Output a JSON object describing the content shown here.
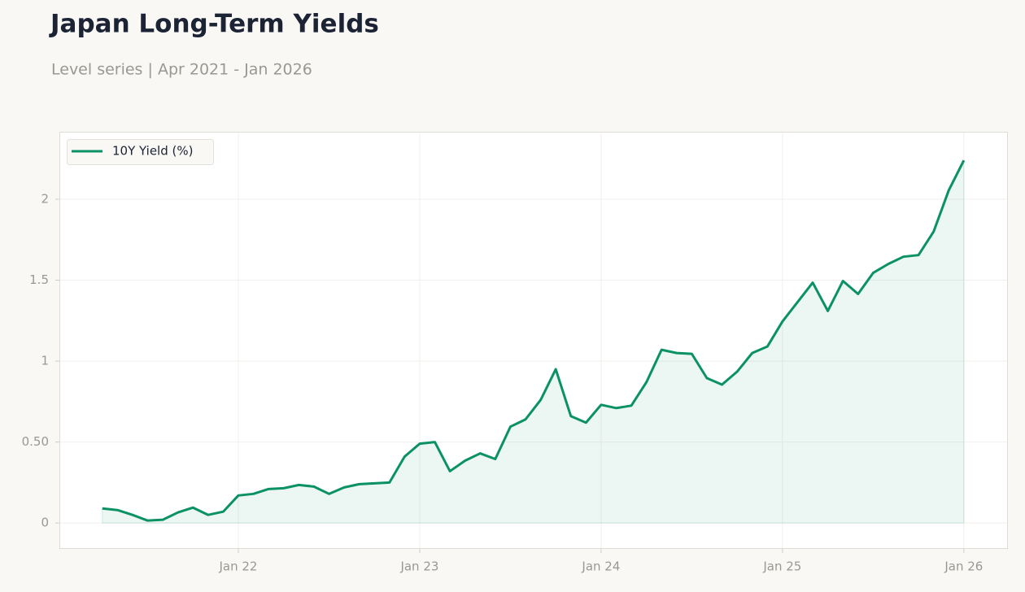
{
  "chart_data": {
    "type": "line",
    "title": "Japan Long-Term Yields",
    "subtitle": "Level series | Apr 2021 - Jan 2026",
    "x": [
      "2021-04",
      "2021-05",
      "2021-06",
      "2021-07",
      "2021-08",
      "2021-09",
      "2021-10",
      "2021-11",
      "2021-12",
      "2022-01",
      "2022-02",
      "2022-03",
      "2022-04",
      "2022-05",
      "2022-06",
      "2022-07",
      "2022-08",
      "2022-09",
      "2022-10",
      "2022-11",
      "2022-12",
      "2023-01",
      "2023-02",
      "2023-03",
      "2023-04",
      "2023-05",
      "2023-06",
      "2023-07",
      "2023-08",
      "2023-09",
      "2023-10",
      "2023-11",
      "2023-12",
      "2024-01",
      "2024-02",
      "2024-03",
      "2024-04",
      "2024-05",
      "2024-06",
      "2024-07",
      "2024-08",
      "2024-09",
      "2024-10",
      "2024-11",
      "2024-12",
      "2025-01",
      "2025-02",
      "2025-03",
      "2025-04",
      "2025-05",
      "2025-06",
      "2025-07",
      "2025-08",
      "2025-09",
      "2025-10",
      "2025-11",
      "2025-12",
      "2026-01"
    ],
    "series": [
      {
        "name": "10Y Yield (%)",
        "color": "#0a9165",
        "values": [
          0.09,
          0.08,
          0.05,
          0.015,
          0.02,
          0.065,
          0.095,
          0.05,
          0.07,
          0.17,
          0.18,
          0.21,
          0.215,
          0.235,
          0.225,
          0.18,
          0.22,
          0.24,
          0.245,
          0.25,
          0.41,
          0.49,
          0.5,
          0.32,
          0.385,
          0.43,
          0.395,
          0.595,
          0.64,
          0.76,
          0.95,
          0.66,
          0.62,
          0.73,
          0.71,
          0.725,
          0.87,
          1.07,
          1.05,
          1.045,
          0.895,
          0.855,
          0.935,
          1.05,
          1.09,
          1.245,
          1.365,
          1.485,
          1.31,
          1.495,
          1.415,
          1.545,
          1.6,
          1.645,
          1.655,
          1.8,
          2.055,
          2.24
        ]
      }
    ],
    "xlim": [
      "2021-01",
      "2026-03"
    ],
    "xticks": [
      {
        "value": "2022-01",
        "label": "Jan 22"
      },
      {
        "value": "2023-01",
        "label": "Jan 23"
      },
      {
        "value": "2024-01",
        "label": "Jan 24"
      },
      {
        "value": "2025-01",
        "label": "Jan 25"
      },
      {
        "value": "2026-01",
        "label": "Jan 26"
      }
    ],
    "ylim": [
      -0.16,
      2.417
    ],
    "yticks": [
      0,
      {
        "value": 0.5,
        "label": "0.50"
      },
      1,
      1.5,
      2
    ],
    "grid": true,
    "area": true,
    "legend": "upper left"
  }
}
